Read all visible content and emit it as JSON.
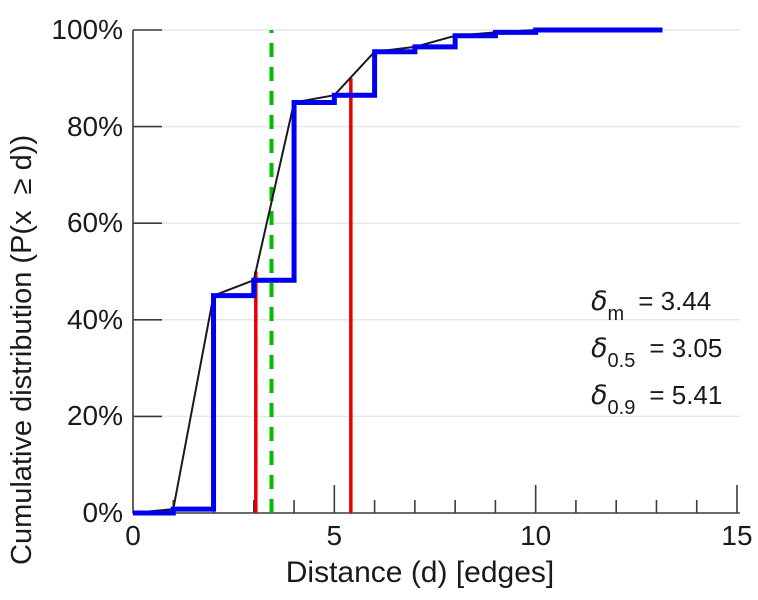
{
  "chart_data": {
    "type": "line",
    "xlabel": "Distance (d) [edges]",
    "ylabel": "Cumulative distribution (P(x  ≥ d))",
    "xlim": [
      0,
      15
    ],
    "ylim_percent": [
      0,
      100
    ],
    "grid": "horizontal",
    "x_ticks": [
      {
        "v": 0,
        "label": "0"
      },
      {
        "v": 5,
        "label": "5"
      },
      {
        "v": 10,
        "label": "10"
      },
      {
        "v": 15,
        "label": "15"
      }
    ],
    "x_minor_ticks": [
      1,
      2,
      3,
      4,
      6,
      7,
      8,
      9,
      11,
      12,
      13,
      14
    ],
    "y_ticks": [
      {
        "v": 0,
        "label": "0%"
      },
      {
        "v": 20,
        "label": "20%"
      },
      {
        "v": 40,
        "label": "40%"
      },
      {
        "v": 60,
        "label": "60%"
      },
      {
        "v": 80,
        "label": "80%"
      },
      {
        "v": 100,
        "label": "100%"
      }
    ],
    "distances": [
      0,
      1,
      2,
      3,
      4,
      5,
      6,
      7,
      8,
      9,
      10
    ],
    "cumulative_percent": [
      0,
      0.8,
      45,
      48.2,
      85,
      86.5,
      95.5,
      96.5,
      98.8,
      99.5,
      100
    ],
    "line_end_x": 13.15,
    "series": [
      {
        "name": "empirical-cdf-step",
        "style": "step-post",
        "color": "#0000ee",
        "stroke_width": 5
      },
      {
        "name": "linear-interpolation",
        "style": "linear",
        "color": "#1a1a1a",
        "stroke_width": 2
      }
    ],
    "vlines": [
      {
        "name": "mean-line",
        "x": 3.44,
        "to_percent": 100,
        "color": "#00bb00",
        "dashed": true,
        "stroke_width": 4
      },
      {
        "name": "median-line",
        "x": 3.05,
        "to_percent": 50,
        "color": "#e60000",
        "dashed": false,
        "stroke_width": 3.5
      },
      {
        "name": "p90-line",
        "x": 5.41,
        "to_percent": 90,
        "color": "#e60000",
        "dashed": false,
        "stroke_width": 3.5
      }
    ],
    "annotations": [
      {
        "name": "delta-mean",
        "symbol": "δ",
        "subscript": "m",
        "value": "= 3.44"
      },
      {
        "name": "delta-median",
        "symbol": "δ",
        "subscript": "0.5",
        "value": "= 3.05"
      },
      {
        "name": "delta-p90",
        "symbol": "δ",
        "subscript": "0.9",
        "value": "= 5.41"
      }
    ],
    "colors": {
      "grid": "#e7e7e7",
      "axis": "#3c3c3c",
      "text": "#1a1a1a",
      "background": "#ffffff"
    }
  }
}
